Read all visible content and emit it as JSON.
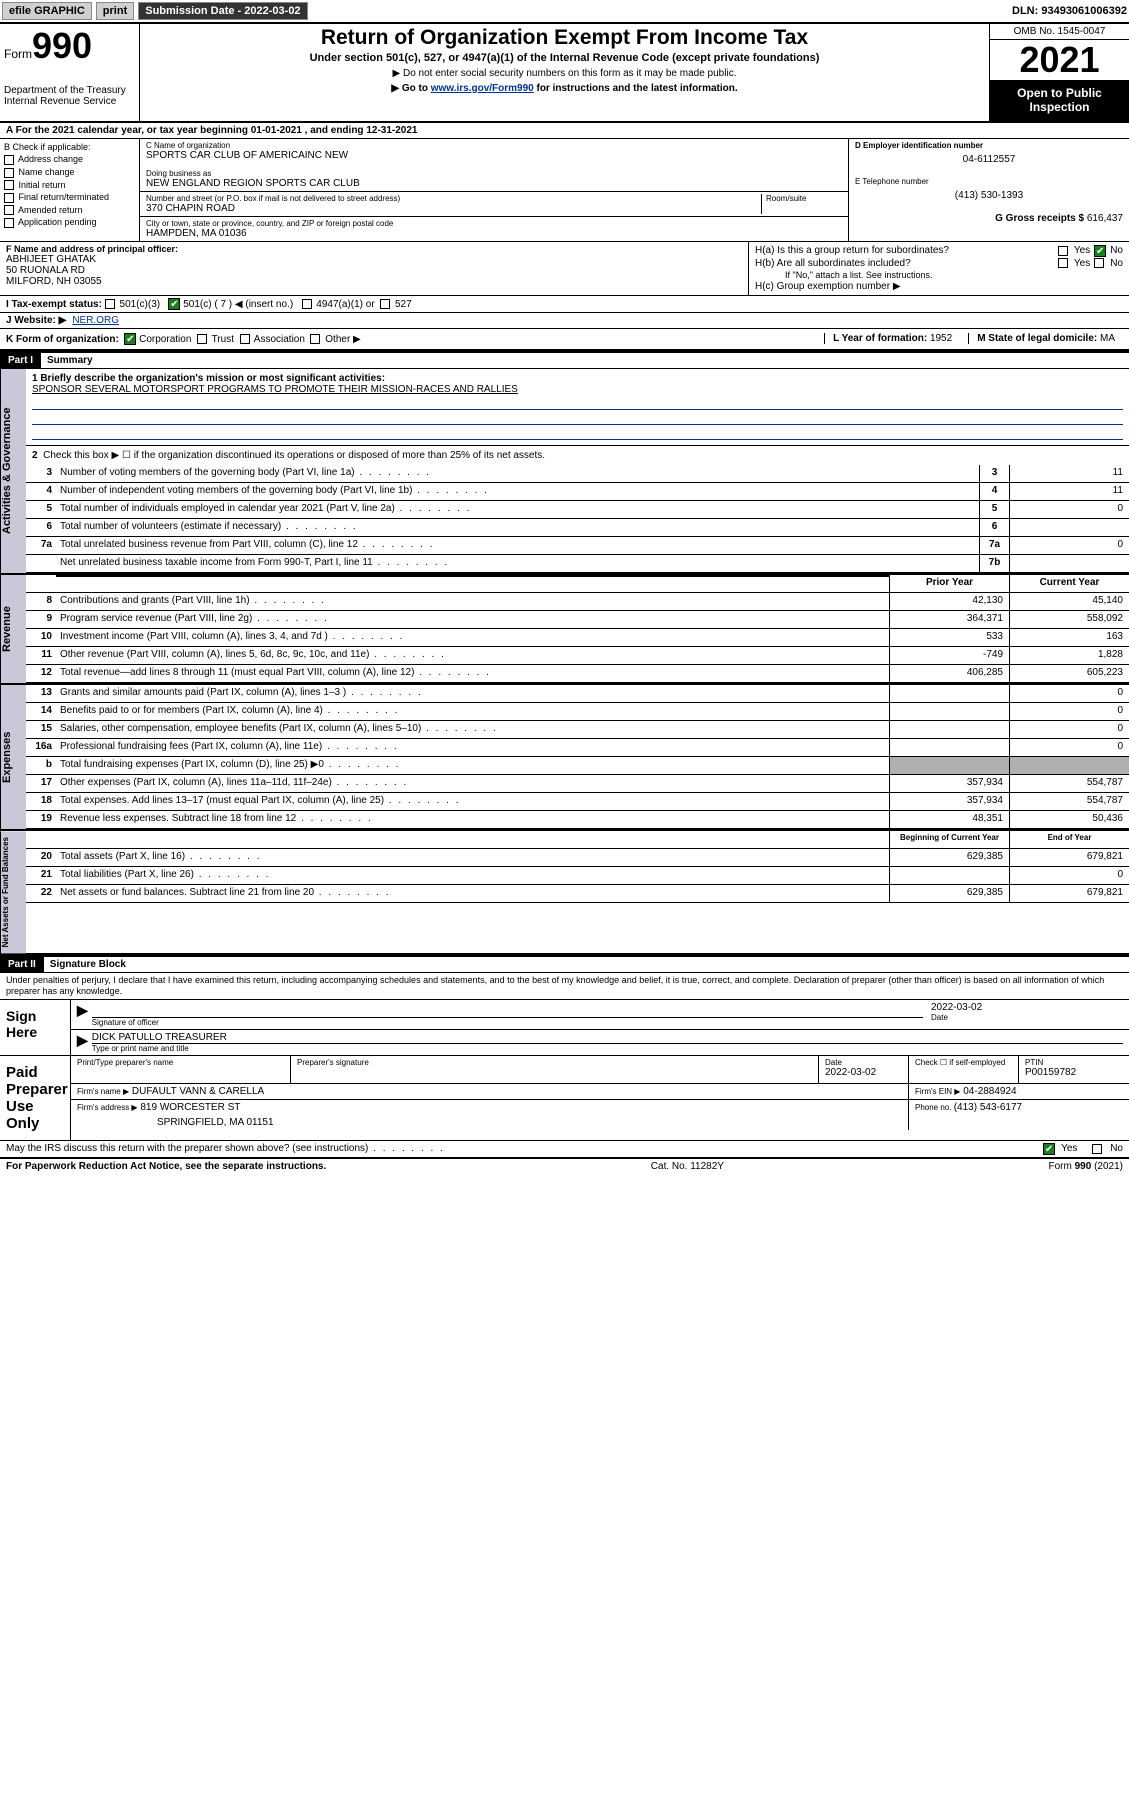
{
  "topbar": {
    "efile": "efile GRAPHIC",
    "print": "print",
    "sub_label": "Submission Date - ",
    "sub_date": "2022-03-02",
    "dln_label": "DLN: ",
    "dln": "93493061006392"
  },
  "header": {
    "form_pre": "Form",
    "form_no": "990",
    "title": "Return of Organization Exempt From Income Tax",
    "subtitle": "Under section 501(c), 527, or 4947(a)(1) of the Internal Revenue Code (except private foundations)",
    "note1": "▶ Do not enter social security numbers on this form as it may be made public.",
    "note2_pre": "▶ Go to ",
    "note2_link": "www.irs.gov/Form990",
    "note2_post": " for instructions and the latest information.",
    "dept": "Department of the Treasury\nInternal Revenue Service",
    "omb": "OMB No. 1545-0047",
    "year": "2021",
    "open_pub": "Open to Public Inspection"
  },
  "rowA": "A For the 2021 calendar year, or tax year beginning 01-01-2021   , and ending 12-31-2021",
  "colB": {
    "title": "B Check if applicable:",
    "items": [
      "Address change",
      "Name change",
      "Initial return",
      "Final return/terminated",
      "Amended return",
      "Application pending"
    ]
  },
  "colC": {
    "name_lbl": "C Name of organization",
    "name": "SPORTS CAR CLUB OF AMERICAINC NEW",
    "dba_lbl": "Doing business as",
    "dba": "NEW ENGLAND REGION SPORTS CAR CLUB",
    "addr_lbl": "Number and street (or P.O. box if mail is not delivered to street address)",
    "room_lbl": "Room/suite",
    "addr": "370 CHAPIN ROAD",
    "city_lbl": "City or town, state or province, country, and ZIP or foreign postal code",
    "city": "HAMPDEN, MA  01036"
  },
  "colD": {
    "d_lbl": "D Employer identification number",
    "d_val": "04-6112557",
    "e_lbl": "E Telephone number",
    "e_val": "(413) 530-1393",
    "g_lbl": "G Gross receipts $ ",
    "g_val": "616,437"
  },
  "rowF": {
    "f_lbl": "F Name and address of principal officer:",
    "f_name": "ABHIJEET GHATAK",
    "f_addr1": "50 RUONALA RD",
    "f_addr2": "MILFORD, NH  03055"
  },
  "rowH": {
    "ha": "H(a)  Is this a group return for subordinates?",
    "hb": "H(b)  Are all subordinates included?",
    "hb_note": "If \"No,\" attach a list. See instructions.",
    "hc": "H(c)  Group exemption number ▶",
    "yes": "Yes",
    "no": "No"
  },
  "rowI": {
    "lbl": "I   Tax-exempt status:",
    "o1": "501(c)(3)",
    "o2": "501(c) ( 7 ) ◀ (insert no.)",
    "o3": "4947(a)(1) or",
    "o4": "527"
  },
  "rowJ": {
    "lbl": "J   Website: ▶",
    "val": "NER.ORG"
  },
  "rowK": {
    "lbl": "K Form of organization:",
    "opts": [
      "Corporation",
      "Trust",
      "Association",
      "Other ▶"
    ],
    "l_lbl": "L Year of formation: ",
    "l_val": "1952",
    "m_lbl": "M State of legal domicile: ",
    "m_val": "MA"
  },
  "part1": {
    "hdr": "Part I",
    "title": "Summary"
  },
  "vtabs": [
    "Activities & Governance",
    "Revenue",
    "Expenses",
    "Net Assets or Fund Balances"
  ],
  "q1": {
    "lbl": "1  Briefly describe the organization's mission or most significant activities:",
    "val": "SPONSOR SEVERAL MOTORSPORT PROGRAMS TO PROMOTE THEIR MISSION-RACES AND RALLIES"
  },
  "q2": "Check this box ▶ ☐  if the organization discontinued its operations or disposed of more than 25% of its net assets.",
  "lines_top": [
    {
      "n": "3",
      "t": "Number of voting members of the governing body (Part VI, line 1a)",
      "box": "3",
      "v": "11"
    },
    {
      "n": "4",
      "t": "Number of independent voting members of the governing body (Part VI, line 1b)",
      "box": "4",
      "v": "11"
    },
    {
      "n": "5",
      "t": "Total number of individuals employed in calendar year 2021 (Part V, line 2a)",
      "box": "5",
      "v": "0"
    },
    {
      "n": "6",
      "t": "Total number of volunteers (estimate if necessary)",
      "box": "6",
      "v": ""
    },
    {
      "n": "7a",
      "t": "Total unrelated business revenue from Part VIII, column (C), line 12",
      "box": "7a",
      "v": "0"
    },
    {
      "n": "",
      "t": "Net unrelated business taxable income from Form 990-T, Part I, line 11",
      "box": "7b",
      "v": ""
    }
  ],
  "cols2": {
    "prior": "Prior Year",
    "current": "Current Year",
    "boc": "Beginning of Current Year",
    "eoy": "End of Year"
  },
  "revenue": [
    {
      "n": "8",
      "t": "Contributions and grants (Part VIII, line 1h)",
      "p": "42,130",
      "c": "45,140"
    },
    {
      "n": "9",
      "t": "Program service revenue (Part VIII, line 2g)",
      "p": "364,371",
      "c": "558,092"
    },
    {
      "n": "10",
      "t": "Investment income (Part VIII, column (A), lines 3, 4, and 7d )",
      "p": "533",
      "c": "163"
    },
    {
      "n": "11",
      "t": "Other revenue (Part VIII, column (A), lines 5, 6d, 8c, 9c, 10c, and 11e)",
      "p": "-749",
      "c": "1,828"
    },
    {
      "n": "12",
      "t": "Total revenue—add lines 8 through 11 (must equal Part VIII, column (A), line 12)",
      "p": "406,285",
      "c": "605,223"
    }
  ],
  "expenses": [
    {
      "n": "13",
      "t": "Grants and similar amounts paid (Part IX, column (A), lines 1–3 )",
      "p": "",
      "c": "0"
    },
    {
      "n": "14",
      "t": "Benefits paid to or for members (Part IX, column (A), line 4)",
      "p": "",
      "c": "0"
    },
    {
      "n": "15",
      "t": "Salaries, other compensation, employee benefits (Part IX, column (A), lines 5–10)",
      "p": "",
      "c": "0"
    },
    {
      "n": "16a",
      "t": "Professional fundraising fees (Part IX, column (A), line 11e)",
      "p": "",
      "c": "0"
    },
    {
      "n": "b",
      "t": "Total fundraising expenses (Part IX, column (D), line 25) ▶0",
      "p": "SHADE",
      "c": "SHADE"
    },
    {
      "n": "17",
      "t": "Other expenses (Part IX, column (A), lines 11a–11d, 11f–24e)",
      "p": "357,934",
      "c": "554,787"
    },
    {
      "n": "18",
      "t": "Total expenses. Add lines 13–17 (must equal Part IX, column (A), line 25)",
      "p": "357,934",
      "c": "554,787"
    },
    {
      "n": "19",
      "t": "Revenue less expenses. Subtract line 18 from line 12",
      "p": "48,351",
      "c": "50,436"
    }
  ],
  "netassets": [
    {
      "n": "20",
      "t": "Total assets (Part X, line 16)",
      "p": "629,385",
      "c": "679,821"
    },
    {
      "n": "21",
      "t": "Total liabilities (Part X, line 26)",
      "p": "",
      "c": "0"
    },
    {
      "n": "22",
      "t": "Net assets or fund balances. Subtract line 21 from line 20",
      "p": "629,385",
      "c": "679,821"
    }
  ],
  "part2": {
    "hdr": "Part II",
    "title": "Signature Block"
  },
  "sig": {
    "decl": "Under penalties of perjury, I declare that I have examined this return, including accompanying schedules and statements, and to the best of my knowledge and belief, it is true, correct, and complete. Declaration of preparer (other than officer) is based on all information of which preparer has any knowledge.",
    "sign_here": "Sign Here",
    "sig_officer": "Signature of officer",
    "date": "Date",
    "sig_date": "2022-03-02",
    "officer_name": "DICK PATULLO TREASURER",
    "type_name": "Type or print name and title",
    "paid": "Paid Preparer Use Only",
    "prep_name_lbl": "Print/Type preparer's name",
    "prep_sig_lbl": "Preparer's signature",
    "prep_date": "2022-03-02",
    "check_if": "Check ☐ if self-employed",
    "ptin_lbl": "PTIN",
    "ptin": "P00159782",
    "firm_name_lbl": "Firm's name   ▶",
    "firm_name": "DUFAULT VANN & CARELLA",
    "firm_ein_lbl": "Firm's EIN ▶",
    "firm_ein": "04-2884924",
    "firm_addr_lbl": "Firm's address ▶",
    "firm_addr": "819 WORCESTER ST",
    "firm_city": "SPRINGFIELD, MA  01151",
    "phone_lbl": "Phone no. ",
    "phone": "(413) 543-6177",
    "discuss": "May the IRS discuss this return with the preparer shown above? (see instructions)"
  },
  "footer": {
    "pra": "For Paperwork Reduction Act Notice, see the separate instructions.",
    "cat": "Cat. No. 11282Y",
    "form": "Form 990 (2021)"
  }
}
